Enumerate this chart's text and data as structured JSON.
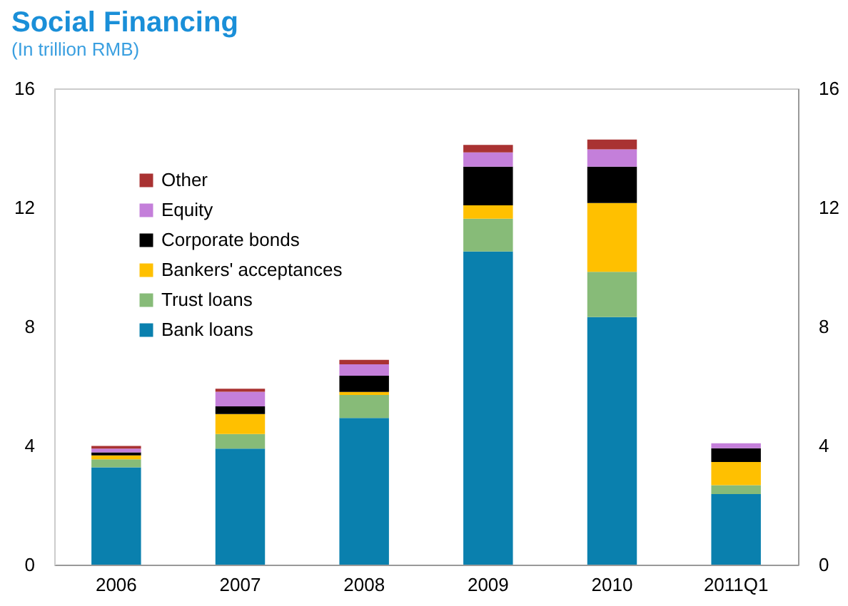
{
  "chart_data": {
    "type": "bar",
    "title": "Social Financing",
    "subtitle": "(In trillion RMB)",
    "stacked": true,
    "legend": "top left",
    "categories": [
      "2006",
      "2007",
      "2008",
      "2009",
      "2010",
      "2011Q1"
    ],
    "series": [
      {
        "name": "Bank loans",
        "color": "#0a80ae",
        "values": [
          3.27,
          3.9,
          4.93,
          10.52,
          8.32,
          2.37
        ]
      },
      {
        "name": "Trust loans",
        "color": "#87bb78",
        "values": [
          0.27,
          0.49,
          0.77,
          1.1,
          1.52,
          0.3
        ]
      },
      {
        "name": "Bankers' acceptances",
        "color": "#ffc000",
        "values": [
          0.13,
          0.67,
          0.1,
          0.45,
          2.31,
          0.78
        ]
      },
      {
        "name": "Corporate bonds",
        "color": "#000000",
        "values": [
          0.1,
          0.26,
          0.55,
          1.3,
          1.22,
          0.46
        ]
      },
      {
        "name": "Equity",
        "color": "#c47fda",
        "values": [
          0.13,
          0.49,
          0.38,
          0.48,
          0.58,
          0.17
        ]
      },
      {
        "name": "Other",
        "color": "#a93232",
        "values": [
          0.09,
          0.1,
          0.15,
          0.25,
          0.33,
          0
        ]
      }
    ],
    "ylim": [
      0,
      16
    ],
    "yticks": [
      0,
      4,
      8,
      12,
      16
    ],
    "y2lim": [
      0,
      16
    ],
    "y2ticks": [
      0,
      4,
      8,
      12,
      16
    ]
  }
}
